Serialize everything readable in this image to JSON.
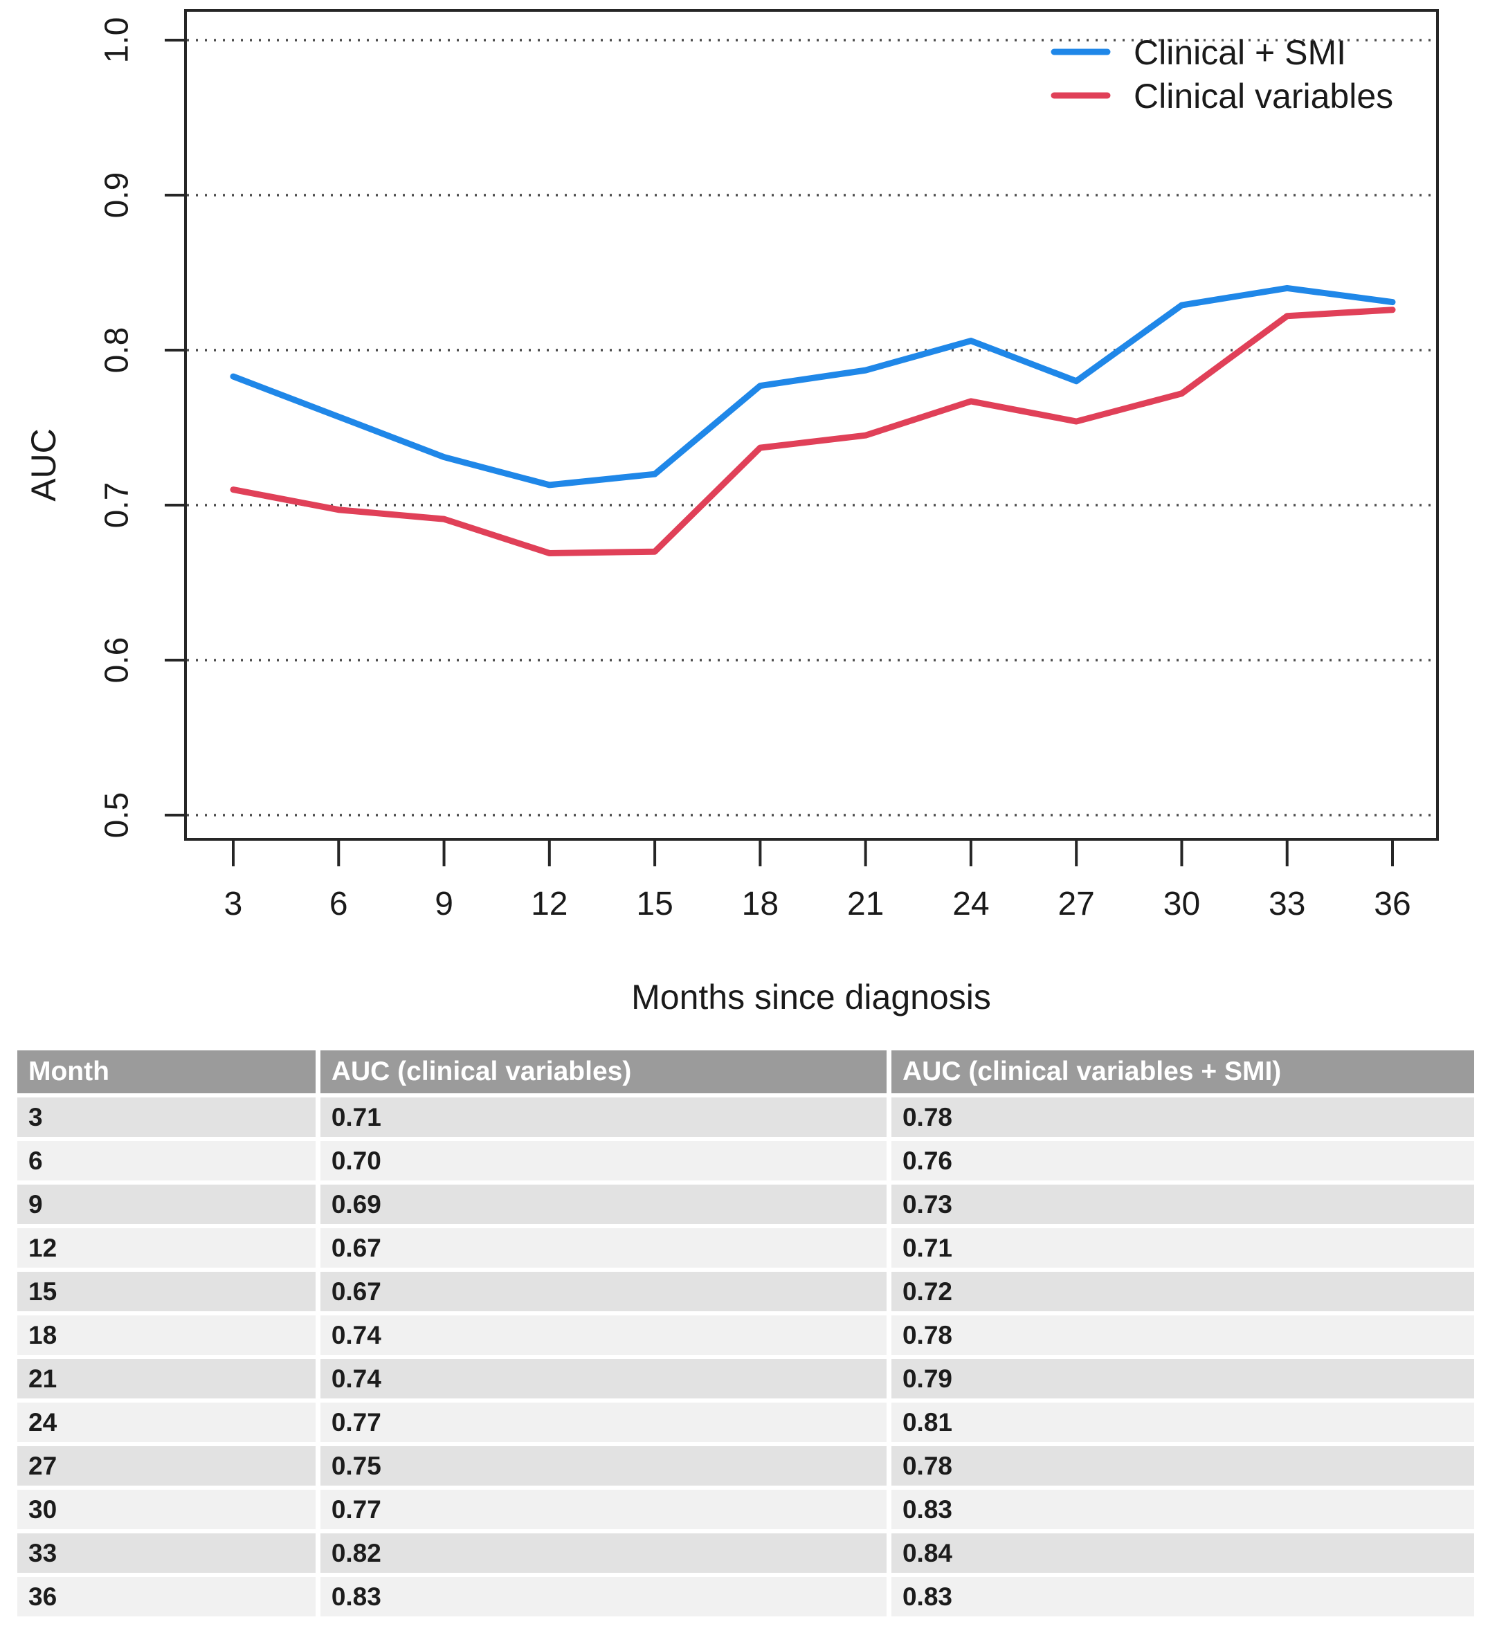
{
  "chart_data": {
    "type": "line",
    "x": [
      3,
      6,
      9,
      12,
      15,
      18,
      21,
      24,
      27,
      30,
      33,
      36
    ],
    "series": [
      {
        "name": "Clinical + SMI",
        "color": "#1f87e8",
        "values": [
          0.783,
          0.757,
          0.731,
          0.713,
          0.72,
          0.777,
          0.787,
          0.806,
          0.78,
          0.829,
          0.84,
          0.831
        ]
      },
      {
        "name": "Clinical variables",
        "color": "#e04058",
        "values": [
          0.71,
          0.697,
          0.691,
          0.669,
          0.67,
          0.737,
          0.745,
          0.767,
          0.754,
          0.772,
          0.822,
          0.826
        ]
      }
    ],
    "title": "",
    "xlabel": "Months since diagnosis",
    "ylabel": "AUC",
    "ylim": [
      0.48,
      1.02
    ],
    "yticks": [
      0.5,
      0.6,
      0.7,
      0.8,
      0.9,
      1.0
    ],
    "xticks": [
      3,
      6,
      9,
      12,
      15,
      18,
      21,
      24,
      27,
      30,
      33,
      36
    ],
    "grid": "horizontal dotted lines at each y tick",
    "legend_position": "top-right",
    "frame": "full box around plot area"
  },
  "table": {
    "headers": [
      "Month",
      "AUC (clinical variables)",
      "AUC (clinical variables + SMI)"
    ],
    "rows": [
      [
        "3",
        "0.71",
        "0.78"
      ],
      [
        "6",
        "0.70",
        "0.76"
      ],
      [
        "9",
        "0.69",
        "0.73"
      ],
      [
        "12",
        "0.67",
        "0.71"
      ],
      [
        "15",
        "0.67",
        "0.72"
      ],
      [
        "18",
        "0.74",
        "0.78"
      ],
      [
        "21",
        "0.74",
        "0.79"
      ],
      [
        "24",
        "0.77",
        "0.81"
      ],
      [
        "27",
        "0.75",
        "0.78"
      ],
      [
        "30",
        "0.77",
        "0.83"
      ],
      [
        "33",
        "0.82",
        "0.84"
      ],
      [
        "36",
        "0.83",
        "0.83"
      ]
    ]
  },
  "colors": {
    "series_blue": "#1f87e8",
    "series_red": "#e04058",
    "axis_frame": "#262626",
    "grid_dots": "#4d4d4d",
    "table_header_bg": "#9b9b9b",
    "table_row_dark": "#e2e2e2",
    "table_row_light": "#f1f1f1",
    "text": "#1a1a1a"
  }
}
